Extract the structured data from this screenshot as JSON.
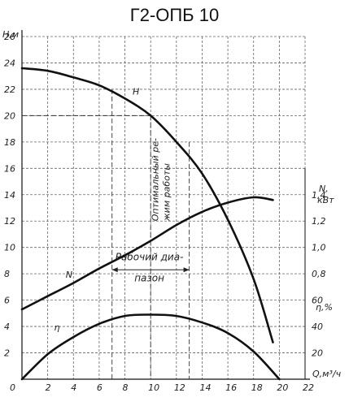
{
  "chart_data": {
    "type": "line",
    "title": "Г2-ОПБ 10",
    "xlabel": "Q,м³/ч",
    "ylabel_left": "Н,м",
    "ylabel_right_power": "N, кВт",
    "ylabel_right_eff": "η,%",
    "xlim": [
      0,
      22
    ],
    "ylim_left": [
      0,
      26
    ],
    "ylim_power": [
      0,
      1.4
    ],
    "ylim_eff": [
      0,
      60
    ],
    "x_ticks": [
      "0",
      "2",
      "4",
      "6",
      "8",
      "10",
      "12",
      "14",
      "16",
      "18",
      "20",
      "22"
    ],
    "left_ticks": [
      "0",
      "2",
      "4",
      "6",
      "8",
      "10",
      "12",
      "14",
      "16",
      "18",
      "20",
      "22",
      "24",
      "26"
    ],
    "power_ticks": [
      "0,8",
      "1,0",
      "1,2",
      "1,4"
    ],
    "eff_ticks": [
      "20",
      "40",
      "60"
    ],
    "grid": true,
    "series": [
      {
        "name": "H",
        "axis": "left",
        "x": [
          0,
          2,
          4,
          6,
          8,
          10,
          12,
          14,
          16,
          18,
          19.5
        ],
        "y": [
          23.6,
          23.4,
          22.9,
          22.3,
          21.3,
          20.0,
          18.0,
          15.6,
          12.1,
          7.6,
          2.8
        ]
      },
      {
        "name": "N",
        "axis": "power",
        "x": [
          0,
          2,
          4,
          6,
          8,
          10,
          12,
          14,
          16,
          18,
          19.5
        ],
        "y": [
          0.53,
          0.63,
          0.73,
          0.84,
          0.94,
          1.05,
          1.17,
          1.27,
          1.34,
          1.38,
          1.36
        ]
      },
      {
        "name": "η",
        "axis": "eff",
        "x": [
          0,
          2,
          4,
          6,
          8,
          10,
          12,
          14,
          16,
          18,
          20
        ],
        "y": [
          0,
          19,
          32,
          42,
          48,
          49,
          48,
          43,
          35,
          21,
          0
        ]
      }
    ],
    "annotations": {
      "optimal_mode": "Оптимальный ре-\nжим работы",
      "working_range": "Рабочий диа-\nпазон",
      "optimal_point": {
        "x": 10,
        "h": 20
      },
      "working_range_q": [
        7,
        13
      ]
    }
  }
}
